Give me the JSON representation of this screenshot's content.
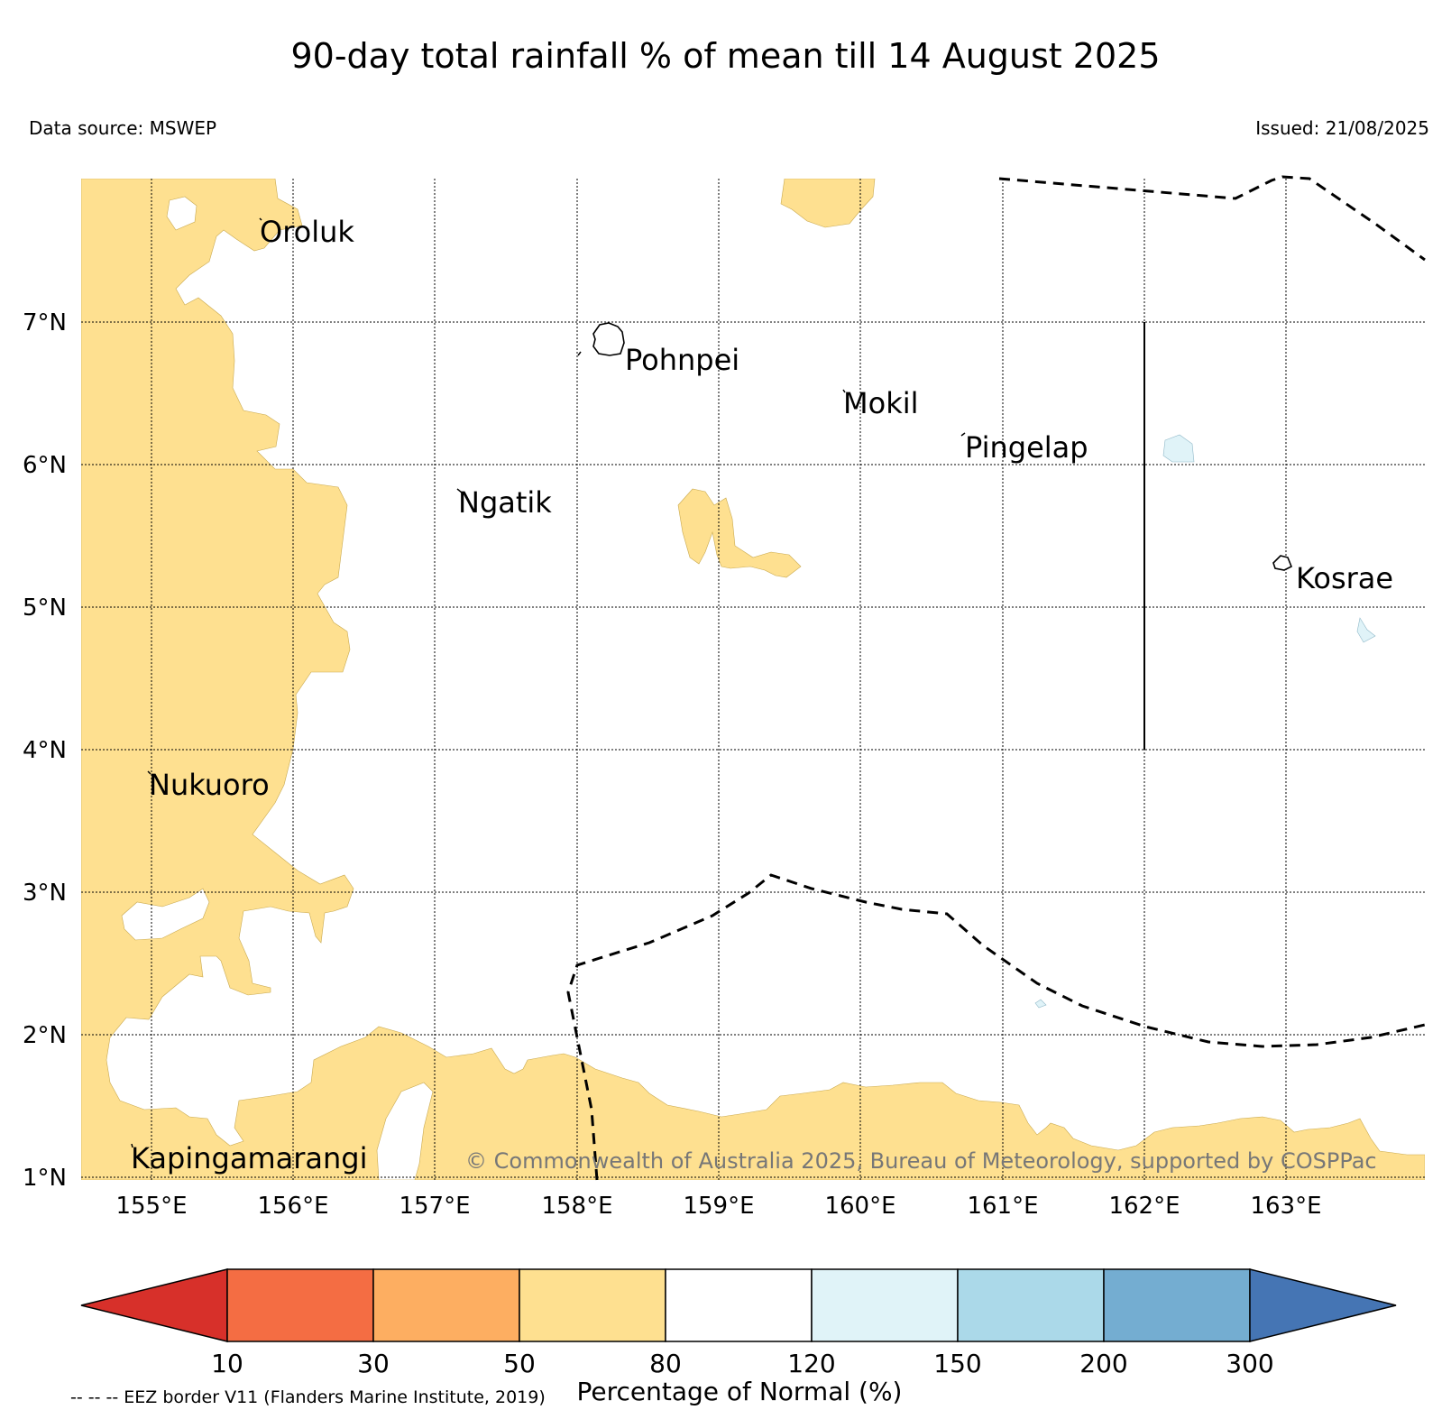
{
  "header": {
    "title": "90-day total rainfall % of mean till 14 August 2025",
    "data_source": "Data source: MSWEP",
    "issued": "Issued: 21/08/2025"
  },
  "map": {
    "lat_ticks": [
      "7°N",
      "6°N",
      "5°N",
      "4°N",
      "3°N",
      "2°N",
      "1°N"
    ],
    "lon_ticks": [
      "155°E",
      "156°E",
      "157°E",
      "158°E",
      "159°E",
      "160°E",
      "161°E",
      "162°E",
      "163°E"
    ],
    "islands": [
      "Oroluk",
      "Pohnpei",
      "Mokil",
      "Pingelap",
      "Ngatik",
      "Kosrae",
      "Nukuoro",
      "Kapingamarangi"
    ],
    "copyright": "© Commonwealth of Australia 2025, Bureau of Meteorology, supported by COSPPac"
  },
  "colorbar": {
    "ticks": [
      "10",
      "30",
      "50",
      "80",
      "120",
      "150",
      "200",
      "300"
    ],
    "label": "Percentage of Normal (%)",
    "colors": [
      "#d7302a",
      "#f46d43",
      "#fdae61",
      "#fee090",
      "#ffffff",
      "#e0f3f8",
      "#abd9e9",
      "#74add1",
      "#4575b4"
    ]
  },
  "footer": {
    "eez_note": "-- -- -- EEZ border V11 (Flanders Marine Institute, 2019)"
  }
}
